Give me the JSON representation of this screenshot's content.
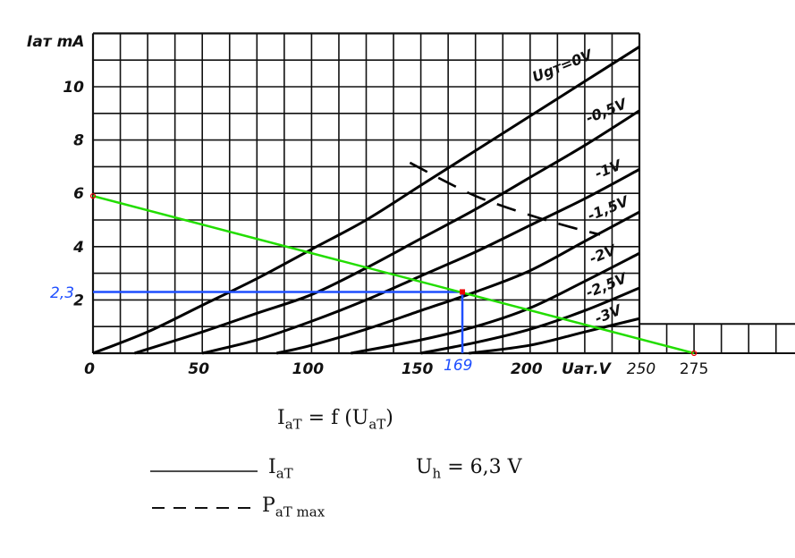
{
  "chart_data": {
    "type": "line",
    "xlabel": "Uaт.V",
    "ylabel": "Iaт mA",
    "xlim": [
      0,
      320
    ],
    "ylim": [
      0,
      12
    ],
    "grid": true,
    "x_ticks": [
      "0",
      "50",
      "100",
      "150",
      "200",
      "250",
      "275"
    ],
    "x_tick_values": [
      0,
      50,
      100,
      150,
      200,
      250,
      275
    ],
    "y_ticks": [
      "2",
      "4",
      "6",
      "8",
      "10"
    ],
    "y_tick_values": [
      2,
      4,
      6,
      8,
      10
    ],
    "series": [
      {
        "name": "Ugт=0V",
        "points": [
          [
            0,
            0
          ],
          [
            25,
            0.8
          ],
          [
            50,
            1.8
          ],
          [
            75,
            2.8
          ],
          [
            100,
            3.9
          ],
          [
            125,
            5.0
          ],
          [
            150,
            6.3
          ],
          [
            175,
            7.6
          ],
          [
            200,
            8.9
          ],
          [
            225,
            10.2
          ],
          [
            250,
            11.5
          ]
        ]
      },
      {
        "name": "-0,5V",
        "points": [
          [
            19,
            0
          ],
          [
            50,
            0.8
          ],
          [
            75,
            1.5
          ],
          [
            100,
            2.2
          ],
          [
            125,
            3.2
          ],
          [
            150,
            4.3
          ],
          [
            175,
            5.4
          ],
          [
            200,
            6.6
          ],
          [
            225,
            7.8
          ],
          [
            250,
            9.1
          ]
        ]
      },
      {
        "name": "-1V",
        "points": [
          [
            50,
            0
          ],
          [
            75,
            0.5
          ],
          [
            100,
            1.2
          ],
          [
            125,
            2.0
          ],
          [
            150,
            2.9
          ],
          [
            175,
            3.8
          ],
          [
            200,
            4.8
          ],
          [
            225,
            5.8
          ],
          [
            250,
            6.9
          ]
        ]
      },
      {
        "name": "-1,5V",
        "points": [
          [
            84,
            0
          ],
          [
            100,
            0.3
          ],
          [
            125,
            0.9
          ],
          [
            150,
            1.6
          ],
          [
            175,
            2.3
          ],
          [
            200,
            3.1
          ],
          [
            225,
            4.2
          ],
          [
            250,
            5.3
          ]
        ]
      },
      {
        "name": "-2V",
        "points": [
          [
            118,
            0
          ],
          [
            150,
            0.5
          ],
          [
            175,
            1.0
          ],
          [
            200,
            1.7
          ],
          [
            225,
            2.7
          ],
          [
            250,
            3.75
          ]
        ]
      },
      {
        "name": "-2,5V",
        "points": [
          [
            150,
            0
          ],
          [
            175,
            0.4
          ],
          [
            200,
            0.9
          ],
          [
            225,
            1.6
          ],
          [
            250,
            2.45
          ]
        ]
      },
      {
        "name": "-3V",
        "points": [
          [
            172,
            0
          ],
          [
            200,
            0.3
          ],
          [
            225,
            0.8
          ],
          [
            250,
            1.3
          ]
        ]
      }
    ],
    "pmax_curve": {
      "points": [
        [
          145,
          7.15
        ],
        [
          160,
          6.5
        ],
        [
          175,
          5.9
        ],
        [
          190,
          5.45
        ],
        [
          205,
          5.05
        ],
        [
          220,
          4.7
        ],
        [
          232,
          4.45
        ]
      ],
      "style": "dashed"
    },
    "load_line": {
      "points": [
        [
          0,
          5.9
        ],
        [
          275,
          0
        ]
      ],
      "color": "#22dd00"
    },
    "operating_point": {
      "x": 169,
      "y": 2.3,
      "x_label": "169",
      "y_label": "2,3",
      "color": "#1f4fff",
      "marker_color": "#ee0000"
    }
  },
  "legend": {
    "formula": {
      "lhs": "I",
      "lhs_sub": "aT",
      "eq": " = f (U",
      "arg_sub": "aT",
      "close": ")"
    },
    "solid": {
      "label": "I",
      "sub": "aT"
    },
    "dashed": {
      "label": "P",
      "sub": "aT max"
    },
    "heater": {
      "label": "U",
      "sub": "h",
      "value": " = 6,3 V"
    }
  }
}
